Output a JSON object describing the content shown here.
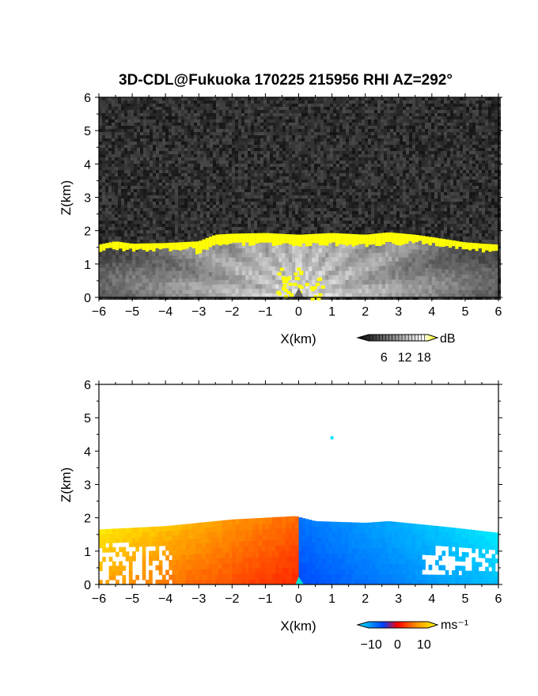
{
  "title": "3D-CDL@Fukuoka 170225 215956 RHI AZ=292°",
  "chart_data": [
    {
      "type": "heatmap",
      "name": "backscatter-intensity",
      "xlabel": "X(km)",
      "ylabel": "Z(km)",
      "xlim": [
        -6,
        6
      ],
      "ylim": [
        0,
        6
      ],
      "xticks": [
        -6,
        -5,
        -4,
        -3,
        -2,
        -1,
        0,
        1,
        2,
        3,
        4,
        5,
        6
      ],
      "yticks": [
        0,
        1,
        2,
        3,
        4,
        5,
        6
      ],
      "background": "noise (dark gray, low dB) above echo top",
      "echo_top_km": [
        {
          "x": -6.0,
          "z": 1.55
        },
        {
          "x": -5.5,
          "z": 1.65
        },
        {
          "x": -5.0,
          "z": 1.58
        },
        {
          "x": -4.0,
          "z": 1.6
        },
        {
          "x": -3.0,
          "z": 1.65
        },
        {
          "x": -2.5,
          "z": 1.85
        },
        {
          "x": -2.0,
          "z": 1.88
        },
        {
          "x": -1.0,
          "z": 1.9
        },
        {
          "x": 0.0,
          "z": 1.85
        },
        {
          "x": 1.0,
          "z": 1.9
        },
        {
          "x": 2.0,
          "z": 1.85
        },
        {
          "x": 2.7,
          "z": 1.92
        },
        {
          "x": 3.5,
          "z": 1.85
        },
        {
          "x": 4.5,
          "z": 1.7
        },
        {
          "x": 5.0,
          "z": 1.62
        },
        {
          "x": 6.0,
          "z": 1.55
        }
      ],
      "colorbar": {
        "unit": "dB",
        "ticks": [
          "6",
          "12",
          "18"
        ],
        "colors": [
          "#000000",
          "#ffffff",
          "#ffff00"
        ]
      }
    },
    {
      "type": "heatmap",
      "name": "doppler-velocity",
      "xlabel": "X(km)",
      "ylabel": "Z(km)",
      "xlim": [
        -6,
        6
      ],
      "ylim": [
        0,
        6
      ],
      "xticks": [
        -6,
        -5,
        -4,
        -3,
        -2,
        -1,
        0,
        1,
        2,
        3,
        4,
        5,
        6
      ],
      "yticks": [
        0,
        1,
        2,
        3,
        4,
        5,
        6
      ],
      "velocity_note": "positive (warm) for X<0, negative (cool) for X>0; magnitude increases toward the surface and toward X=0",
      "echo_top_km": [
        {
          "x": -6.0,
          "z": 1.65
        },
        {
          "x": -4.0,
          "z": 1.75
        },
        {
          "x": -2.0,
          "z": 1.95
        },
        {
          "x": -0.1,
          "z": 2.05
        },
        {
          "x": 0.5,
          "z": 1.9
        },
        {
          "x": 2.0,
          "z": 1.85
        },
        {
          "x": 2.7,
          "z": 1.9
        },
        {
          "x": 4.5,
          "z": 1.72
        },
        {
          "x": 6.0,
          "z": 1.55
        }
      ],
      "isolated_point": {
        "x": 1.0,
        "z": 4.4
      },
      "colorbar": {
        "unit": "ms⁻¹",
        "ticks": [
          "−10",
          "0",
          "10"
        ],
        "colors": [
          "#00e8ff",
          "#0040ff",
          "#ff0000",
          "#ff9900",
          "#ffff00"
        ]
      }
    }
  ]
}
